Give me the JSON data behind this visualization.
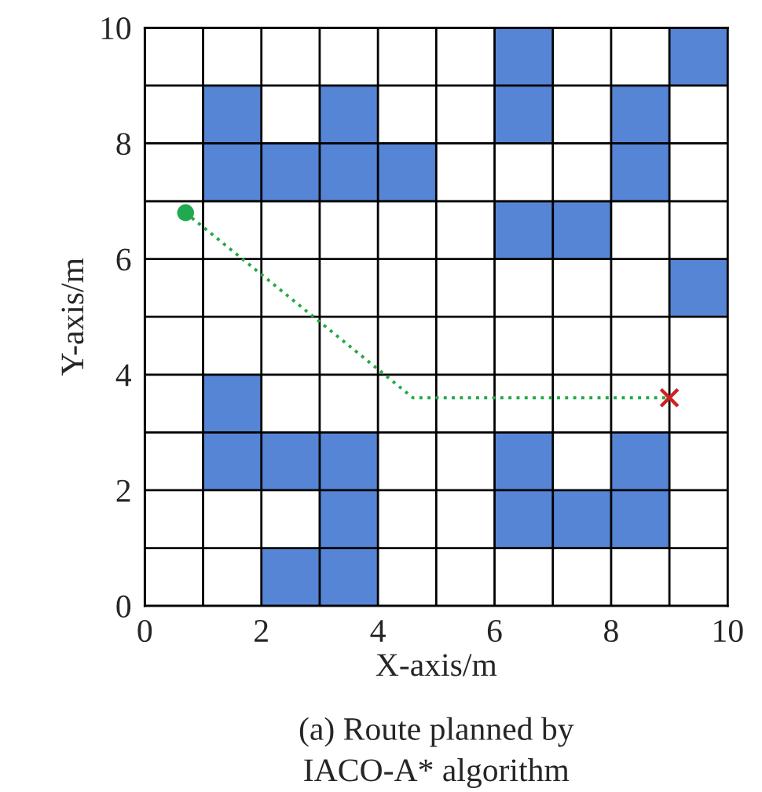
{
  "chart_data": {
    "type": "scatter",
    "xlabel": "X-axis/m",
    "ylabel": "Y-axis/m",
    "annotations": [
      "(a) Route planned by\nIACO-A* algorithm"
    ],
    "xlim": [
      0,
      10
    ],
    "ylim": [
      0,
      10
    ],
    "xticks": [
      0,
      {
        "value": 1,
        "label": null
      },
      2,
      {
        "value": 3,
        "label": null
      },
      4,
      {
        "value": 5,
        "label": null
      },
      6,
      {
        "value": 7,
        "label": null
      },
      8,
      {
        "value": 9,
        "label": null
      },
      10
    ],
    "yticks": [
      0,
      {
        "value": 1,
        "label": null
      },
      2,
      {
        "value": 3,
        "label": null
      },
      4,
      {
        "value": 5,
        "label": null
      },
      6,
      {
        "value": 7,
        "label": null
      },
      8,
      {
        "value": 9,
        "label": null
      },
      10
    ],
    "grid": true,
    "legend": false,
    "series": [
      {
        "type": "scatter",
        "marker": "square",
        "color": "#5585d4",
        "x": [
          6.5,
          9.5,
          1.5,
          3.5,
          6.5,
          8.5,
          1.5,
          2.5,
          3.5,
          4.5,
          8.5,
          6.5,
          7.5,
          9.5,
          1.5,
          1.5,
          2.5,
          3.5,
          6.5,
          8.5,
          3.5,
          6.5,
          7.5,
          8.5,
          2.5,
          3.5
        ],
        "values": [
          9.5,
          9.5,
          8.5,
          8.5,
          8.5,
          8.5,
          7.5,
          7.5,
          7.5,
          7.5,
          7.5,
          6.5,
          6.5,
          5.5,
          3.5,
          2.5,
          2.5,
          2.5,
          2.5,
          2.5,
          1.5,
          1.5,
          1.5,
          1.5,
          0.5,
          0.5
        ]
      },
      {
        "type": "line",
        "marker": "none",
        "line_style": "dotted",
        "color": "#22aa44",
        "x": [
          0.7,
          4.6,
          9.0
        ],
        "values": [
          6.8,
          3.6,
          3.6
        ]
      },
      {
        "type": "scatter",
        "marker": "circle",
        "color": "#1faa50",
        "x": [
          0.7
        ],
        "values": [
          6.8
        ]
      },
      {
        "type": "scatter",
        "marker": "cross",
        "color": "#cc2222",
        "x": [
          9.0
        ],
        "values": [
          3.6
        ]
      }
    ]
  }
}
